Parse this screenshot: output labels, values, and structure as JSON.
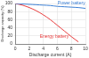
{
  "chart_data": {
    "type": "line",
    "x_label": "Discharge current (A)",
    "y_label": "Discharge capacity (%)",
    "x": [
      0,
      1,
      2,
      3,
      4,
      5,
      6,
      7,
      8,
      9,
      10
    ],
    "series": [
      {
        "name": "Power battery",
        "color": "#3b7fd4",
        "values": [
          100,
          99,
          98,
          97,
          96,
          95,
          93,
          92,
          91,
          90,
          88
        ]
      },
      {
        "name": "Energy battery",
        "color": "#e8393a",
        "values": [
          100,
          96,
          90,
          82,
          72,
          60,
          46,
          32,
          18,
          5,
          null
        ]
      }
    ],
    "xlim": [
      0,
      10
    ],
    "xticks": [
      0,
      2,
      4,
      6,
      8,
      10
    ],
    "ylim": [
      0,
      100
    ],
    "yticks": [
      0,
      20,
      40,
      60,
      80,
      100
    ],
    "grid": true
  }
}
